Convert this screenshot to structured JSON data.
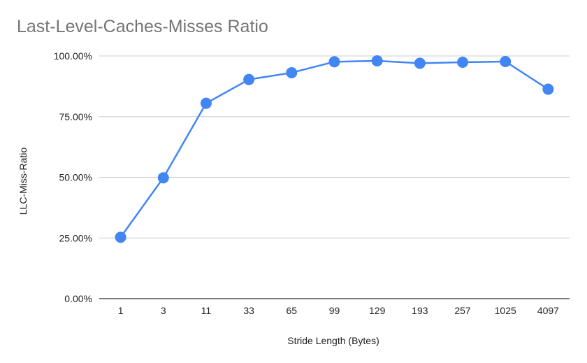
{
  "chart_data": {
    "type": "line",
    "title": "Last-Level-Caches-Misses Ratio",
    "xlabel": "Stride Length (Bytes)",
    "ylabel": "LLC-Miss-Ratio",
    "categories": [
      "1",
      "3",
      "11",
      "33",
      "65",
      "99",
      "129",
      "193",
      "257",
      "1025",
      "4097"
    ],
    "series": [
      {
        "values": [
          25.3,
          49.8,
          80.5,
          90.3,
          93.1,
          97.6,
          98.0,
          97.0,
          97.4,
          97.7,
          86.3
        ],
        "color": "#4285f4"
      }
    ],
    "ylim": [
      0,
      100
    ],
    "yticks": [
      0,
      25,
      50,
      75,
      100
    ],
    "ytick_labels": [
      "0.00%",
      "25.00%",
      "50.00%",
      "75.00%",
      "100.00%"
    ],
    "grid": true,
    "grid_color": "#cccccc",
    "axis_color": "#333333"
  }
}
